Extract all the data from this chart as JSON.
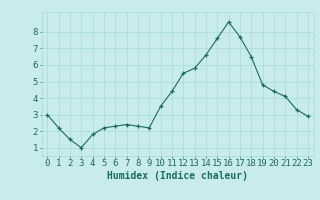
{
  "x": [
    0,
    1,
    2,
    3,
    4,
    5,
    6,
    7,
    8,
    9,
    10,
    11,
    12,
    13,
    14,
    15,
    16,
    17,
    18,
    19,
    20,
    21,
    22,
    23
  ],
  "y": [
    3.0,
    2.2,
    1.5,
    1.0,
    1.8,
    2.2,
    2.3,
    2.4,
    2.3,
    2.2,
    3.5,
    4.4,
    5.5,
    5.8,
    6.6,
    7.6,
    8.6,
    7.7,
    6.5,
    4.8,
    4.4,
    4.1,
    3.3,
    2.9
  ],
  "xlabel": "Humidex (Indice chaleur)",
  "xtick_labels": [
    "0",
    "1",
    "2",
    "3",
    "4",
    "5",
    "6",
    "7",
    "8",
    "9",
    "10",
    "11",
    "12",
    "13",
    "14",
    "15",
    "16",
    "17",
    "18",
    "19",
    "20",
    "21",
    "22",
    "23"
  ],
  "ytick_values": [
    1,
    2,
    3,
    4,
    5,
    6,
    7,
    8
  ],
  "ylim": [
    0.5,
    9.2
  ],
  "xlim": [
    -0.5,
    23.5
  ],
  "line_color": "#1a6b5e",
  "bg_color": "#c8ecec",
  "grid_color": "#a8d8d8",
  "axis_label_color": "#1a6b5e",
  "tick_label_color": "#1a6b5e",
  "xlabel_fontsize": 7,
  "tick_fontsize": 6.5
}
